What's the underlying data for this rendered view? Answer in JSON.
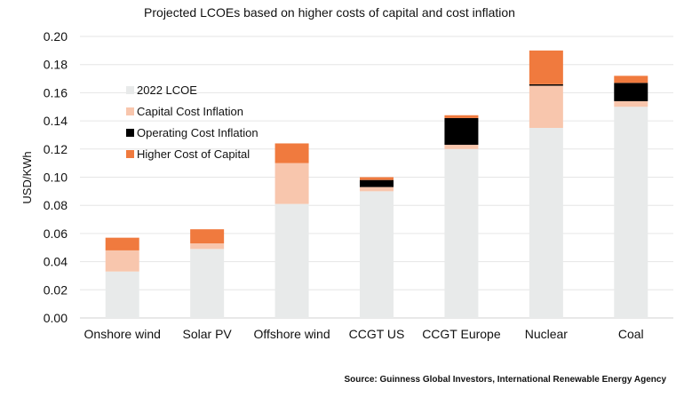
{
  "chart_data": {
    "type": "bar",
    "stacked": true,
    "title": "Projected LCOEs based on higher costs of capital and cost inflation",
    "xlabel": "",
    "ylabel": "USD/KWh",
    "ylim": [
      0,
      0.2
    ],
    "yticks": [
      "0.00",
      "0.02",
      "0.04",
      "0.06",
      "0.08",
      "0.10",
      "0.12",
      "0.14",
      "0.16",
      "0.18",
      "0.20"
    ],
    "grid": true,
    "legend_position": "upper-left",
    "categories": [
      "Onshore wind",
      "Solar PV",
      "Offshore wind",
      "CCGT US",
      "CCGT Europe",
      "Nuclear",
      "Coal"
    ],
    "series": [
      {
        "name": "2022 LCOE",
        "color": "#e8eaea",
        "values": [
          0.033,
          0.049,
          0.081,
          0.09,
          0.12,
          0.135,
          0.15
        ]
      },
      {
        "name": "Capital Cost Inflation",
        "color": "#f8c6ad",
        "values": [
          0.015,
          0.004,
          0.029,
          0.003,
          0.003,
          0.03,
          0.004
        ]
      },
      {
        "name": "Operating Cost Inflation",
        "color": "#000000",
        "values": [
          0.0,
          0.0,
          0.0,
          0.005,
          0.019,
          0.001,
          0.013
        ]
      },
      {
        "name": "Higher Cost of Capital",
        "color": "#f07a3e",
        "values": [
          0.009,
          0.01,
          0.014,
          0.002,
          0.002,
          0.024,
          0.005
        ]
      }
    ],
    "source": "Source: Guinness Global Investors, International Renewable Energy Agency"
  }
}
